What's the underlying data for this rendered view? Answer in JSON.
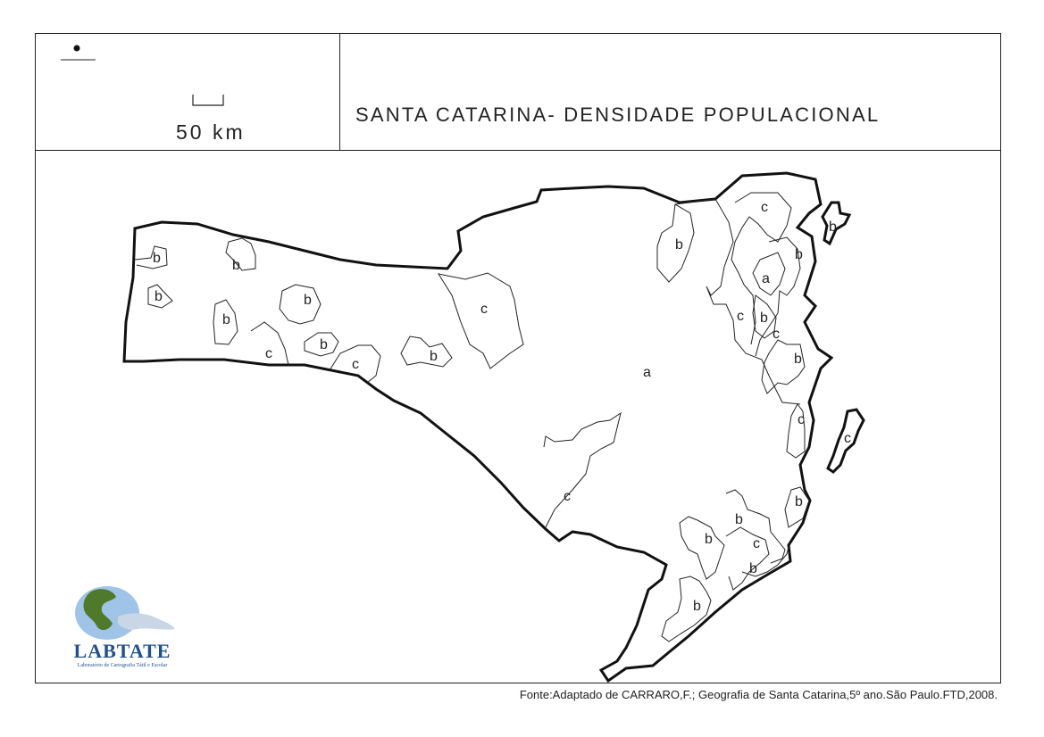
{
  "map": {
    "title": "SANTA CATARINA- DENSIDADE POPULACIONAL",
    "scale_label": "50 km",
    "source": "Fonte:Adaptado de CARRARO,F.; Geografia de Santa Catarina,5º ano.São Paulo.FTD,2008.",
    "region_labels": {
      "a_main": "a",
      "a_north": "a",
      "b": "b",
      "c": "c"
    }
  },
  "logo": {
    "name": "LABTATE",
    "subtitle": "Laboratório de Cartografia Tátil e Escolar"
  }
}
